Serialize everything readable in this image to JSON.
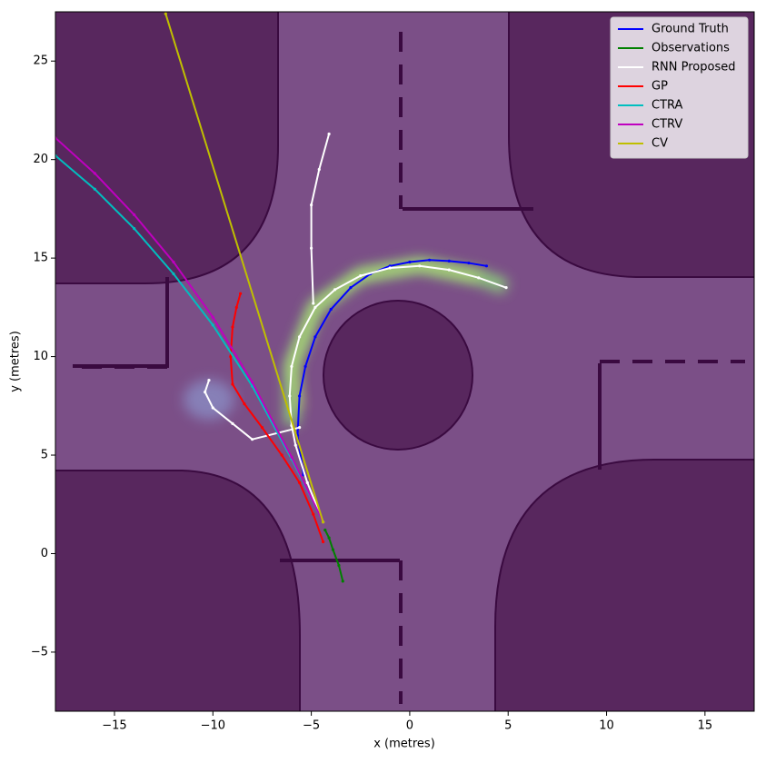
{
  "chart_data": {
    "type": "line",
    "xlabel": "x (metres)",
    "ylabel": "y (metres)",
    "xlim": [
      -18,
      17.5
    ],
    "ylim": [
      -8,
      27.5
    ],
    "xticks": [
      {
        "value": -15,
        "label": "−15"
      },
      {
        "value": -10,
        "label": "−10"
      },
      {
        "value": -5,
        "label": "−5"
      },
      0,
      5,
      10,
      15
    ],
    "yticks": [
      {
        "value": -5,
        "label": "−5"
      },
      0,
      5,
      10,
      15,
      20,
      25
    ],
    "legend": "upper right",
    "series": [
      {
        "name": "Ground Truth",
        "color": "#0000ff",
        "x": [
          -5.4,
          -5.7,
          -5.6,
          -5.3,
          -4.8,
          -4.0,
          -3.0,
          -2.0,
          -1.0,
          0.0,
          1.0,
          2.0,
          3.0,
          3.9
        ],
        "values": [
          4.0,
          6.0,
          8.0,
          9.5,
          11.0,
          12.4,
          13.5,
          14.2,
          14.6,
          14.8,
          14.9,
          14.85,
          14.75,
          14.6
        ]
      },
      {
        "name": "Observations",
        "color": "#008000",
        "x": [
          -3.4,
          -3.6,
          -3.9,
          -4.1,
          -4.3
        ],
        "values": [
          -1.4,
          -0.6,
          0.2,
          0.8,
          1.2
        ]
      },
      {
        "name": "RNN Proposed",
        "color": "#ffffff",
        "x": [
          -4.4,
          -5.2,
          -5.8,
          -6.0,
          -6.1,
          -6.0,
          -5.6,
          -4.8,
          -3.8,
          -2.5,
          -1.0,
          0.5,
          2.0,
          3.5,
          4.9,
          null,
          -4.9,
          -5.0,
          -5.0,
          -4.6,
          -4.1,
          null,
          -5.6,
          -8.0,
          -9.0,
          -10.0,
          -10.4,
          -10.2
        ],
        "values": [
          1.6,
          3.6,
          5.5,
          6.5,
          8.0,
          9.5,
          11.0,
          12.5,
          13.4,
          14.1,
          14.5,
          14.6,
          14.4,
          14.0,
          13.5,
          null,
          12.7,
          15.5,
          17.7,
          19.5,
          21.3,
          null,
          6.4,
          5.8,
          6.6,
          7.4,
          8.2,
          8.8
        ]
      },
      {
        "name": "GP",
        "color": "#ff0000",
        "x": [
          -4.4,
          -4.9,
          -5.6,
          -6.5,
          -7.5,
          -8.4,
          -9.0,
          -9.1,
          -9.0,
          -8.8,
          -8.6
        ],
        "values": [
          0.6,
          2.0,
          3.6,
          5.0,
          6.4,
          7.6,
          8.6,
          10.0,
          11.5,
          12.5,
          13.2
        ]
      },
      {
        "name": "CTRA",
        "color": "#00bfbf",
        "x": [
          -4.4,
          -6,
          -8,
          -10,
          -12,
          -14,
          -16,
          -18
        ],
        "values": [
          1.6,
          4.8,
          8.5,
          11.6,
          14.2,
          16.5,
          18.5,
          20.2
        ]
      },
      {
        "name": "CTRV",
        "color": "#bf00bf",
        "x": [
          -4.4,
          -6,
          -8,
          -10,
          -12,
          -14,
          -16,
          -18
        ],
        "values": [
          1.6,
          4.9,
          8.7,
          12.0,
          14.8,
          17.2,
          19.3,
          21.1
        ]
      },
      {
        "name": "CV",
        "color": "#bfbf00",
        "x": [
          -4.4,
          -12.4
        ],
        "values": [
          1.6,
          27.4
        ]
      }
    ]
  }
}
